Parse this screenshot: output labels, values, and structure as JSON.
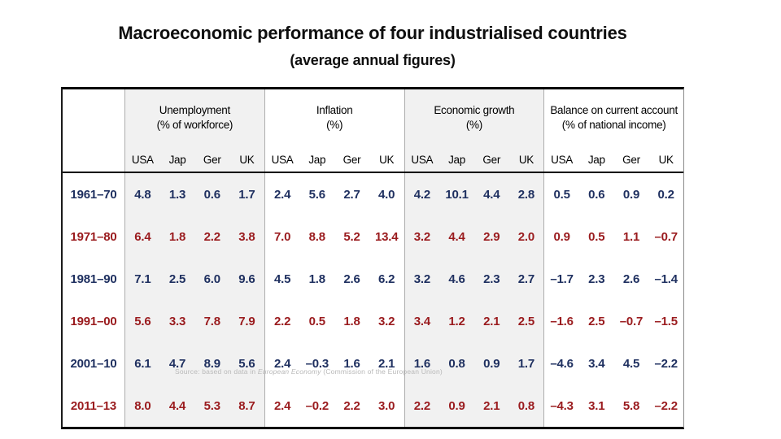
{
  "slide": {
    "title": "Macroeconomic performance of four industrialised countries",
    "subtitle": "(average annual figures)"
  },
  "source_note": {
    "prefix": "Source: based on data in ",
    "publication": "European Economy",
    "suffix": " (Commission of the European Union)"
  },
  "colors": {
    "row_navy": "#1F3060",
    "row_red": "#9A1B1E",
    "group_shade": "#F1F1F1",
    "grid_line": "#ADADAD",
    "frame_line": "#000000",
    "source_text": "#B9B9B9"
  },
  "table": {
    "countries": [
      "USA",
      "Jap",
      "Ger",
      "UK"
    ],
    "groups": [
      {
        "title": "Unemployment",
        "unit": "(% of workforce)",
        "shaded": true
      },
      {
        "title": "Inflation",
        "unit": "(%)",
        "shaded": false
      },
      {
        "title": "Economic growth",
        "unit": "(%)",
        "shaded": true
      },
      {
        "title": "Balance on current account",
        "unit": "(% of national income)",
        "shaded": false
      }
    ],
    "rows": [
      {
        "period": "1961–70",
        "color": "navy",
        "values": [
          "4.8",
          "1.3",
          "0.6",
          "1.7",
          "2.4",
          "5.6",
          "2.7",
          "4.0",
          "4.2",
          "10.1",
          "4.4",
          "2.8",
          "0.5",
          "0.6",
          "0.9",
          "0.2"
        ]
      },
      {
        "period": "1971–80",
        "color": "red",
        "values": [
          "6.4",
          "1.8",
          "2.2",
          "3.8",
          "7.0",
          "8.8",
          "5.2",
          "13.4",
          "3.2",
          "4.4",
          "2.9",
          "2.0",
          "0.9",
          "0.5",
          "1.1",
          "–0.7"
        ]
      },
      {
        "period": "1981–90",
        "color": "navy",
        "values": [
          "7.1",
          "2.5",
          "6.0",
          "9.6",
          "4.5",
          "1.8",
          "2.6",
          "6.2",
          "3.2",
          "4.6",
          "2.3",
          "2.7",
          "–1.7",
          "2.3",
          "2.6",
          "–1.4"
        ]
      },
      {
        "period": "1991–00",
        "color": "red",
        "values": [
          "5.6",
          "3.3",
          "7.8",
          "7.9",
          "2.2",
          "0.5",
          "1.8",
          "3.2",
          "3.4",
          "1.2",
          "2.1",
          "2.5",
          "–1.6",
          "2.5",
          "–0.7",
          "–1.5"
        ]
      },
      {
        "period": "2001–10",
        "color": "navy",
        "values": [
          "6.1",
          "4.7",
          "8.9",
          "5.6",
          "2.4",
          "–0.3",
          "1.6",
          "2.1",
          "1.6",
          "0.8",
          "0.9",
          "1.7",
          "–4.6",
          "3.4",
          "4.5",
          "–2.2"
        ]
      },
      {
        "period": "2011–13",
        "color": "red",
        "values": [
          "8.0",
          "4.4",
          "5.3",
          "8.7",
          "2.4",
          "–0.2",
          "2.2",
          "3.0",
          "2.2",
          "0.9",
          "2.1",
          "0.8",
          "–4.3",
          "3.1",
          "5.8",
          "–2.2"
        ]
      }
    ]
  },
  "chart_data": {
    "type": "table",
    "title": "Macroeconomic performance of four industrialised countries",
    "subtitle": "(average annual figures)",
    "categories": [
      "USA",
      "Jap",
      "Ger",
      "UK"
    ],
    "measures": [
      "Unemployment (% of workforce)",
      "Inflation (%)",
      "Economic growth (%)",
      "Balance on current account (% of national income)"
    ],
    "periods": [
      "1961–70",
      "1971–80",
      "1981–90",
      "1991–00",
      "2001–10",
      "2011–13"
    ],
    "series": [
      {
        "name": "Unemployment (% of workforce)",
        "values": [
          [
            4.8,
            1.3,
            0.6,
            1.7
          ],
          [
            6.4,
            1.8,
            2.2,
            3.8
          ],
          [
            7.1,
            2.5,
            6.0,
            9.6
          ],
          [
            5.6,
            3.3,
            7.8,
            7.9
          ],
          [
            6.1,
            4.7,
            8.9,
            5.6
          ],
          [
            8.0,
            4.4,
            5.3,
            8.7
          ]
        ]
      },
      {
        "name": "Inflation (%)",
        "values": [
          [
            2.4,
            5.6,
            2.7,
            4.0
          ],
          [
            7.0,
            8.8,
            5.2,
            13.4
          ],
          [
            4.5,
            1.8,
            2.6,
            6.2
          ],
          [
            2.2,
            0.5,
            1.8,
            3.2
          ],
          [
            2.4,
            -0.3,
            1.6,
            2.1
          ],
          [
            2.4,
            -0.2,
            2.2,
            3.0
          ]
        ]
      },
      {
        "name": "Economic growth (%)",
        "values": [
          [
            4.2,
            10.1,
            4.4,
            2.8
          ],
          [
            3.2,
            4.4,
            2.9,
            2.0
          ],
          [
            3.2,
            4.6,
            2.3,
            2.7
          ],
          [
            3.4,
            1.2,
            2.1,
            2.5
          ],
          [
            1.6,
            0.8,
            0.9,
            1.7
          ],
          [
            2.2,
            0.9,
            2.1,
            0.8
          ]
        ]
      },
      {
        "name": "Balance on current account (% of national income)",
        "values": [
          [
            0.5,
            0.6,
            0.9,
            0.2
          ],
          [
            0.9,
            0.5,
            1.1,
            -0.7
          ],
          [
            -1.7,
            2.3,
            2.6,
            -1.4
          ],
          [
            -1.6,
            2.5,
            -0.7,
            -1.5
          ],
          [
            -4.6,
            3.4,
            4.5,
            -2.2
          ],
          [
            -4.3,
            3.1,
            5.8,
            -2.2
          ]
        ]
      }
    ],
    "source": "Source: based on data in European Economy (Commission of the European Union)"
  }
}
